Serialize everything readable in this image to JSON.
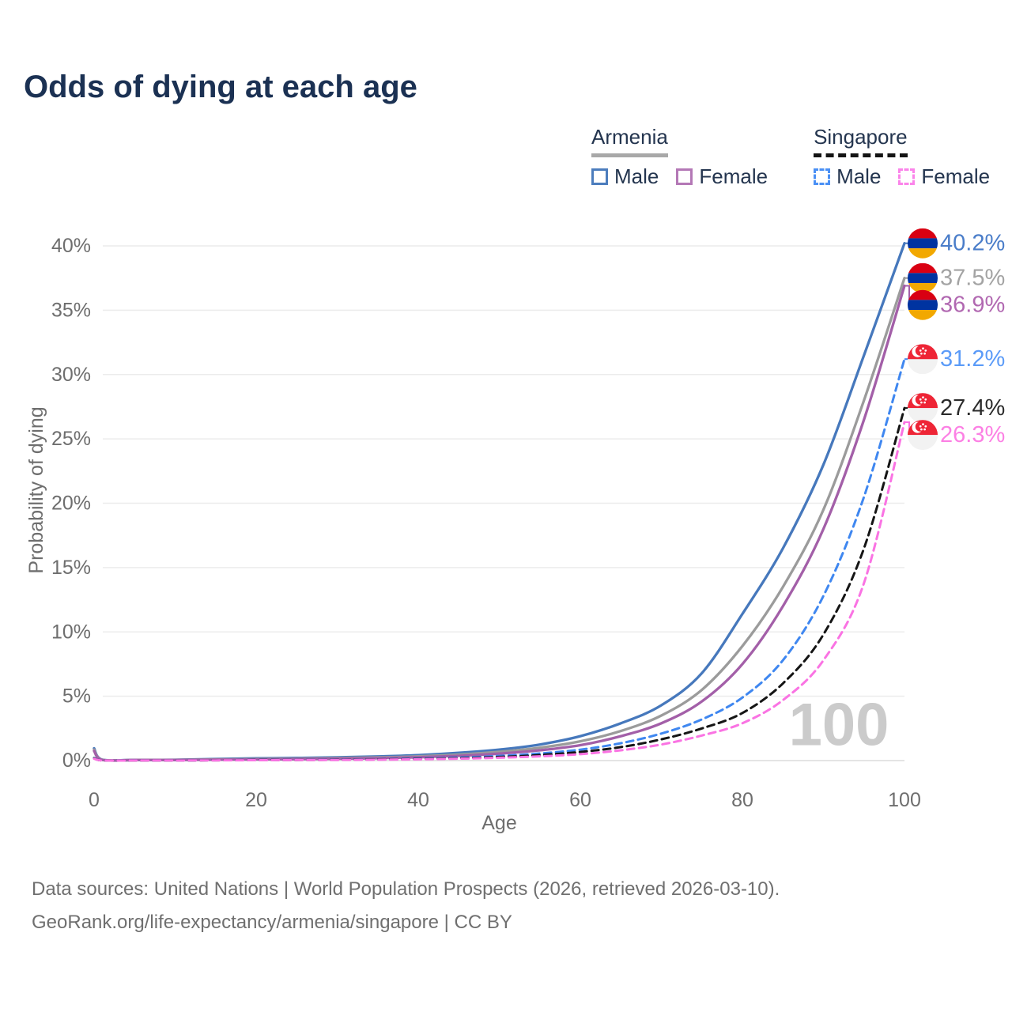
{
  "title": "Odds of dying at each age",
  "legend": {
    "groups": [
      {
        "name": "Armenia",
        "line_style": "solid",
        "underline_color": "#a8a8a8",
        "items": [
          {
            "label": "Male",
            "color": "#4c7dbd",
            "dash": false
          },
          {
            "label": "Female",
            "color": "#b478b6",
            "dash": false
          }
        ]
      },
      {
        "name": "Singapore",
        "line_style": "dashed",
        "underline_color": "#141414",
        "items": [
          {
            "label": "Male",
            "color": "#4a90f5",
            "dash": true
          },
          {
            "label": "Female",
            "color": "#fb84ea",
            "dash": true
          }
        ]
      }
    ]
  },
  "footer": {
    "line1": "Data sources: United Nations | World Population Prospects (2026, retrieved 2026-03-10).",
    "line2": "GeoRank.org/life-expectancy/armenia/singapore | CC BY"
  },
  "chart_data": {
    "type": "line",
    "title": "Odds of dying at each age",
    "xlabel": "Age",
    "ylabel": "Probability of dying",
    "xlim": [
      0,
      100
    ],
    "ylim": [
      0,
      40.5
    ],
    "x_ticks": [
      0,
      20,
      40,
      60,
      80,
      100
    ],
    "y_ticks_pct": [
      0,
      5,
      10,
      15,
      20,
      25,
      30,
      35,
      40
    ],
    "grid": "horizontal",
    "legend_position": "top-right",
    "watermark": "100",
    "watermark_color": "#cbcbcb",
    "ages": [
      0,
      1,
      5,
      10,
      15,
      20,
      25,
      30,
      35,
      40,
      45,
      50,
      55,
      60,
      65,
      70,
      75,
      80,
      85,
      90,
      95,
      100
    ],
    "series": [
      {
        "id": "armenia-male",
        "name": "Armenia Male",
        "country": "Armenia",
        "sex": "Male",
        "flag": "armenia",
        "dash": false,
        "color": "#4678bc",
        "label_color": "#4a7dc9",
        "end_label": "40.2%",
        "end_value": 40.2,
        "values": [
          0.95,
          0.07,
          0.05,
          0.06,
          0.12,
          0.17,
          0.2,
          0.25,
          0.32,
          0.42,
          0.6,
          0.85,
          1.25,
          1.9,
          2.9,
          4.3,
          6.8,
          11.4,
          16.5,
          23.0,
          31.5,
          40.2
        ]
      },
      {
        "id": "armenia-both",
        "name": "Armenia (both sexes)",
        "country": "Armenia",
        "sex": "Both",
        "flag": "armenia",
        "dash": false,
        "color": "#9b9b9b",
        "label_color": "#a3a3a3",
        "end_label": "37.5%",
        "end_value": 37.5,
        "values": [
          0.85,
          0.06,
          0.045,
          0.05,
          0.09,
          0.12,
          0.15,
          0.19,
          0.25,
          0.33,
          0.47,
          0.68,
          1.0,
          1.5,
          2.3,
          3.5,
          5.5,
          8.9,
          13.5,
          19.5,
          28.0,
          37.5
        ]
      },
      {
        "id": "armenia-female",
        "name": "Armenia Female",
        "country": "Armenia",
        "sex": "Female",
        "flag": "armenia",
        "dash": false,
        "color": "#a35fa8",
        "label_color": "#b168b1",
        "end_label": "36.9%",
        "end_value": 36.9,
        "values": [
          0.75,
          0.05,
          0.04,
          0.045,
          0.07,
          0.09,
          0.11,
          0.14,
          0.19,
          0.26,
          0.37,
          0.54,
          0.8,
          1.2,
          1.9,
          2.9,
          4.6,
          7.5,
          12.0,
          18.0,
          26.5,
          36.9
        ]
      },
      {
        "id": "singapore-male",
        "name": "Singapore Male",
        "country": "Singapore",
        "sex": "Male",
        "flag": "singapore",
        "dash": true,
        "color": "#3f87f0",
        "label_color": "#5b9bf8",
        "end_label": "31.2%",
        "end_value": 31.2,
        "values": [
          0.2,
          0.02,
          0.01,
          0.012,
          0.03,
          0.05,
          0.06,
          0.08,
          0.11,
          0.16,
          0.24,
          0.36,
          0.55,
          0.85,
          1.35,
          2.1,
          3.2,
          4.9,
          7.8,
          12.8,
          20.5,
          31.2
        ]
      },
      {
        "id": "singapore-both",
        "name": "Singapore (both sexes)",
        "country": "Singapore",
        "sex": "Both",
        "flag": "singapore",
        "dash": true,
        "color": "#151515",
        "label_color": "#2b2b2b",
        "end_label": "27.4%",
        "end_value": 27.4,
        "values": [
          0.18,
          0.015,
          0.009,
          0.01,
          0.025,
          0.04,
          0.05,
          0.065,
          0.09,
          0.13,
          0.19,
          0.28,
          0.43,
          0.67,
          1.05,
          1.65,
          2.5,
          3.7,
          6.0,
          9.8,
          16.5,
          27.4
        ]
      },
      {
        "id": "singapore-female",
        "name": "Singapore Female",
        "country": "Singapore",
        "sex": "Female",
        "flag": "singapore",
        "dash": true,
        "color": "#fa73e3",
        "label_color": "#fc80e4",
        "end_label": "26.3%",
        "end_value": 26.3,
        "values": [
          0.15,
          0.012,
          0.008,
          0.009,
          0.02,
          0.03,
          0.04,
          0.05,
          0.07,
          0.1,
          0.15,
          0.22,
          0.33,
          0.5,
          0.8,
          1.25,
          1.95,
          2.9,
          4.7,
          7.8,
          13.8,
          26.3
        ]
      }
    ],
    "flag_colors": {
      "armenia": {
        "stripes": [
          "#D90012",
          "#0033A0",
          "#F2A800"
        ]
      },
      "singapore": {
        "red": "#EE2536",
        "white": "#F2F2F2"
      }
    }
  }
}
